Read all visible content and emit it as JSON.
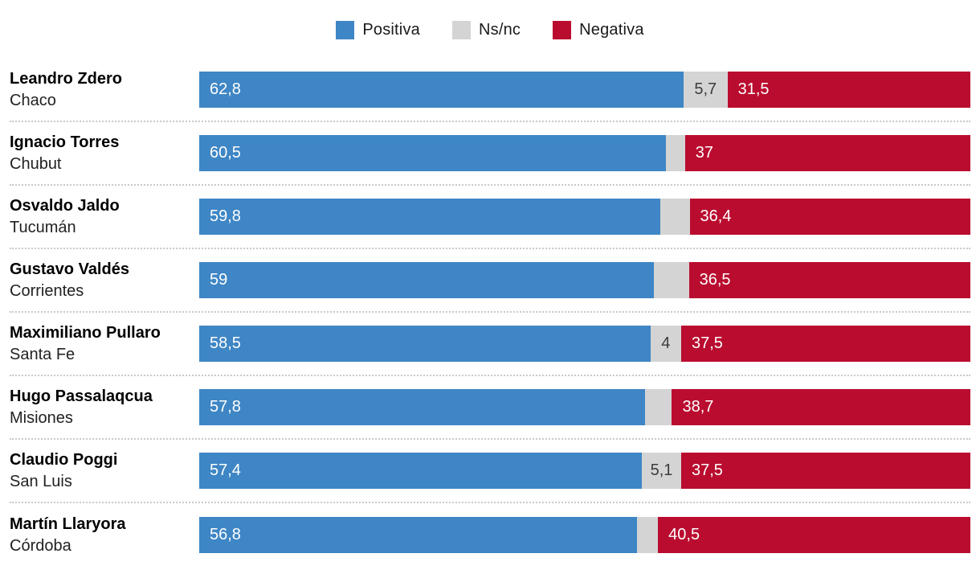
{
  "legend": {
    "items": [
      {
        "label": "Positiva",
        "color": "#3e86c5"
      },
      {
        "label": "Ns/nc",
        "color": "#d4d4d4"
      },
      {
        "label": "Negativa",
        "color": "#ba0c2f"
      }
    ]
  },
  "chart_data": {
    "type": "bar",
    "orientation": "horizontal",
    "stacked": true,
    "unit": "%",
    "xlim": [
      0,
      100
    ],
    "grid": false,
    "legend_position": "top-center",
    "series_names": [
      "Positiva",
      "Ns/nc",
      "Negativa"
    ],
    "series_colors": [
      "#3e86c5",
      "#d4d4d4",
      "#ba0c2f"
    ],
    "rows": [
      {
        "name": "Leandro Zdero",
        "province": "Chaco",
        "positiva": 62.8,
        "nsnc": 5.7,
        "negativa": 31.5,
        "labels": {
          "positiva": "62,8",
          "nsnc": "5,7",
          "negativa": "31,5"
        }
      },
      {
        "name": "Ignacio Torres",
        "province": "Chubut",
        "positiva": 60.5,
        "nsnc": 2.5,
        "negativa": 37.0,
        "labels": {
          "positiva": "60,5",
          "nsnc": "",
          "negativa": "37"
        }
      },
      {
        "name": "Osvaldo Jaldo",
        "province": "Tucumán",
        "positiva": 59.8,
        "nsnc": 3.8,
        "negativa": 36.4,
        "labels": {
          "positiva": "59,8",
          "nsnc": "",
          "negativa": "36,4"
        }
      },
      {
        "name": "Gustavo Valdés",
        "province": "Corrientes",
        "positiva": 59.0,
        "nsnc": 4.5,
        "negativa": 36.5,
        "labels": {
          "positiva": "59",
          "nsnc": "",
          "negativa": "36,5"
        }
      },
      {
        "name": "Maximiliano Pullaro",
        "province": "Santa Fe",
        "positiva": 58.5,
        "nsnc": 4.0,
        "negativa": 37.5,
        "labels": {
          "positiva": "58,5",
          "nsnc": "4",
          "negativa": "37,5"
        }
      },
      {
        "name": "Hugo Passalaqcua",
        "province": "Misiones",
        "positiva": 57.8,
        "nsnc": 3.5,
        "negativa": 38.7,
        "labels": {
          "positiva": "57,8",
          "nsnc": "",
          "negativa": "38,7"
        }
      },
      {
        "name": "Claudio Poggi",
        "province": "San Luis",
        "positiva": 57.4,
        "nsnc": 5.1,
        "negativa": 37.5,
        "labels": {
          "positiva": "57,4",
          "nsnc": "5,1",
          "negativa": "37,5"
        }
      },
      {
        "name": "Martín Llaryora",
        "province": "Córdoba",
        "positiva": 56.8,
        "nsnc": 2.7,
        "negativa": 40.5,
        "labels": {
          "positiva": "56,8",
          "nsnc": "",
          "negativa": "40,5"
        }
      }
    ]
  }
}
